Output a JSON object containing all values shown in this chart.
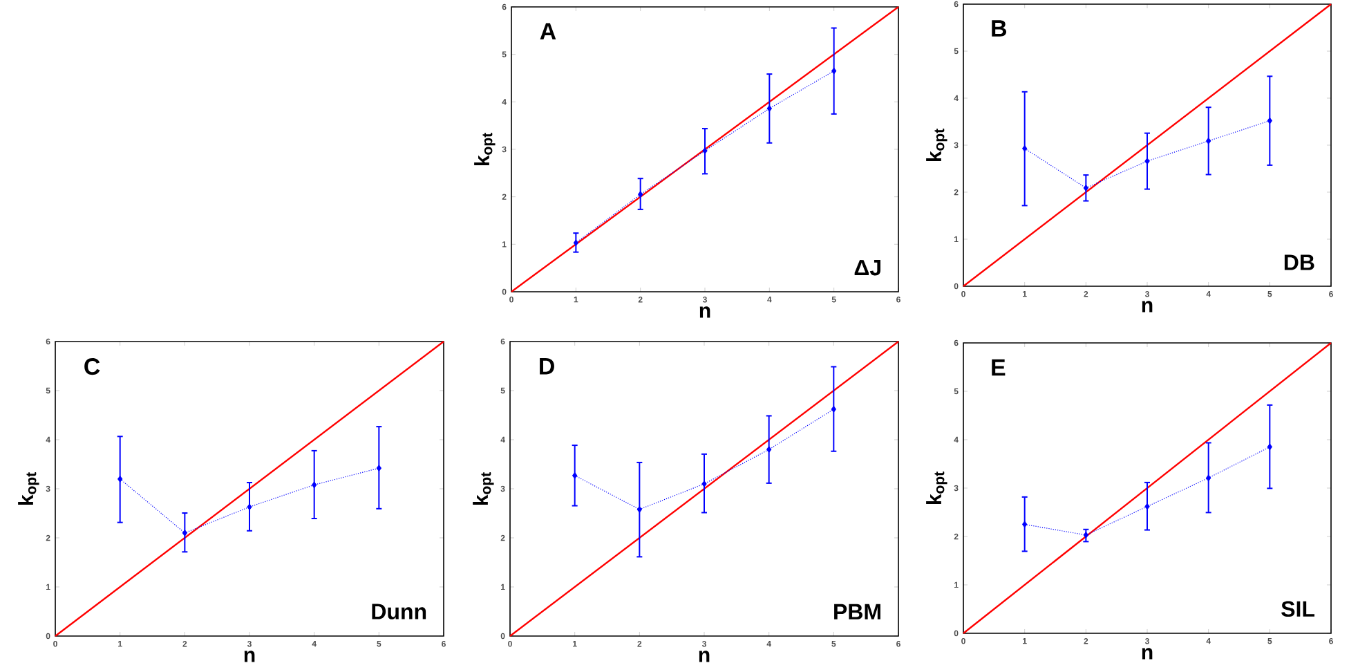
{
  "chart_data": [
    {
      "type": "line",
      "title": "A",
      "annotations": [
        "ΔJ"
      ],
      "xlabel": "n",
      "ylabel": "k$_{opt}$",
      "xlim": [
        0,
        6
      ],
      "ylim": [
        0,
        6
      ],
      "xticks": [
        0,
        1,
        2,
        3,
        4,
        5,
        6
      ],
      "yticks": [
        0,
        1,
        2,
        3,
        4,
        5,
        6
      ],
      "series": [
        {
          "color": "#ff0000",
          "line_style": "solid",
          "x": [
            0,
            6
          ],
          "values": [
            0,
            6
          ]
        },
        {
          "color": "#0000ff",
          "line_style": "dotted",
          "marker": "diamond",
          "x": [
            1,
            2,
            3,
            4,
            5
          ],
          "values": [
            1.03,
            2.05,
            2.97,
            3.86,
            4.65
          ],
          "errors": [
            [
              0.82,
              1.25
            ],
            [
              1.72,
              2.4
            ],
            [
              2.47,
              3.45
            ],
            [
              3.12,
              4.6
            ],
            [
              3.73,
              5.57
            ]
          ]
        }
      ]
    },
    {
      "type": "line",
      "title": "B",
      "annotations": [
        "DB"
      ],
      "xlabel": "n",
      "ylabel": "k$_{opt}$",
      "xlim": [
        0,
        6
      ],
      "ylim": [
        0,
        6
      ],
      "xticks": [
        0,
        1,
        2,
        3,
        4,
        5,
        6
      ],
      "yticks": [
        0,
        1,
        2,
        3,
        4,
        5,
        6
      ],
      "series": [
        {
          "color": "#ff0000",
          "line_style": "solid",
          "x": [
            0,
            6
          ],
          "values": [
            0,
            6
          ]
        },
        {
          "color": "#0000ff",
          "line_style": "dotted",
          "marker": "diamond",
          "x": [
            1,
            2,
            3,
            4,
            5
          ],
          "values": [
            2.93,
            2.09,
            2.66,
            3.09,
            3.52
          ],
          "errors": [
            [
              1.7,
              4.15
            ],
            [
              1.8,
              2.38
            ],
            [
              2.05,
              3.27
            ],
            [
              2.36,
              3.82
            ],
            [
              2.56,
              4.48
            ]
          ]
        }
      ]
    },
    {
      "type": "line",
      "title": "C",
      "annotations": [
        "Dunn"
      ],
      "xlabel": "n",
      "ylabel": "k$_{opt}$",
      "xlim": [
        0,
        6
      ],
      "ylim": [
        0,
        6
      ],
      "xticks": [
        0,
        1,
        2,
        3,
        4,
        5,
        6
      ],
      "yticks": [
        0,
        1,
        2,
        3,
        4,
        5,
        6
      ],
      "series": [
        {
          "color": "#ff0000",
          "line_style": "solid",
          "x": [
            0,
            6
          ],
          "values": [
            0,
            6
          ]
        },
        {
          "color": "#0000ff",
          "line_style": "dotted",
          "marker": "diamond",
          "x": [
            1,
            2,
            3,
            4,
            5
          ],
          "values": [
            3.2,
            2.1,
            2.63,
            3.08,
            3.42
          ],
          "errors": [
            [
              2.3,
              4.08
            ],
            [
              1.7,
              2.52
            ],
            [
              2.13,
              3.14
            ],
            [
              2.38,
              3.79
            ],
            [
              2.58,
              4.28
            ]
          ]
        }
      ]
    },
    {
      "type": "line",
      "title": "D",
      "annotations": [
        "PBM"
      ],
      "xlabel": "n",
      "ylabel": "k$_{opt}$",
      "xlim": [
        0,
        6
      ],
      "ylim": [
        0,
        6
      ],
      "xticks": [
        0,
        1,
        2,
        3,
        4,
        5,
        6
      ],
      "yticks": [
        0,
        1,
        2,
        3,
        4,
        5,
        6
      ],
      "series": [
        {
          "color": "#ff0000",
          "line_style": "solid",
          "x": [
            0,
            6
          ],
          "values": [
            0,
            6
          ]
        },
        {
          "color": "#0000ff",
          "line_style": "dotted",
          "marker": "diamond",
          "x": [
            1,
            2,
            3,
            4,
            5
          ],
          "values": [
            3.27,
            2.58,
            3.1,
            3.8,
            4.62
          ],
          "errors": [
            [
              2.64,
              3.9
            ],
            [
              1.6,
              3.55
            ],
            [
              2.5,
              3.72
            ],
            [
              3.1,
              4.5
            ],
            [
              3.75,
              5.5
            ]
          ]
        }
      ]
    },
    {
      "type": "line",
      "title": "E",
      "annotations": [
        "SIL"
      ],
      "xlabel": "n",
      "ylabel": "k$_{opt}$",
      "xlim": [
        0,
        6
      ],
      "ylim": [
        0,
        6
      ],
      "xticks": [
        0,
        1,
        2,
        3,
        4,
        5,
        6
      ],
      "yticks": [
        0,
        1,
        2,
        3,
        4,
        5,
        6
      ],
      "series": [
        {
          "color": "#ff0000",
          "line_style": "solid",
          "x": [
            0,
            6
          ],
          "values": [
            0,
            6
          ]
        },
        {
          "color": "#0000ff",
          "line_style": "dotted",
          "marker": "diamond",
          "x": [
            1,
            2,
            3,
            4,
            5
          ],
          "values": [
            2.25,
            2.03,
            2.62,
            3.21,
            3.85
          ],
          "errors": [
            [
              1.68,
              2.83
            ],
            [
              1.88,
              2.16
            ],
            [
              2.12,
              3.13
            ],
            [
              2.48,
              3.95
            ],
            [
              2.98,
              4.73
            ]
          ]
        }
      ]
    }
  ]
}
